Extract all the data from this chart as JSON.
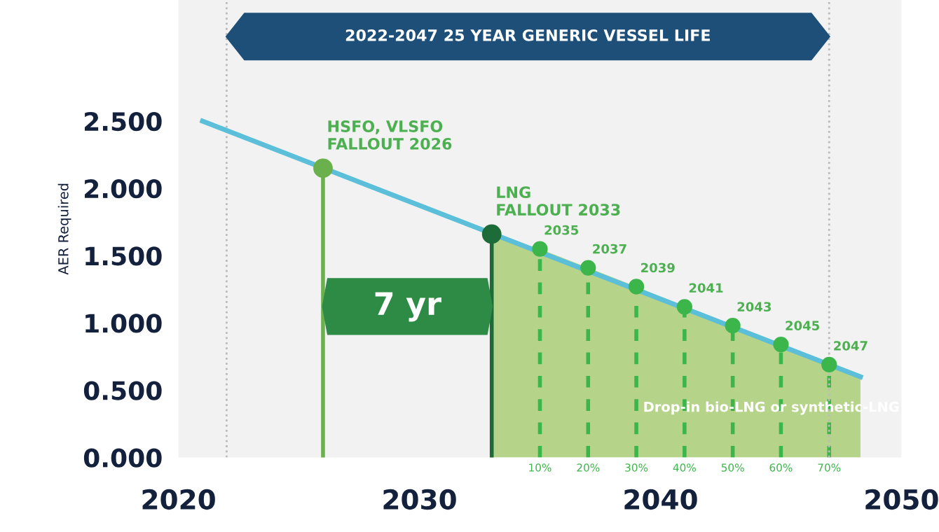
{
  "chart_data": {
    "type": "line",
    "ylabel": "AER Required",
    "xlim": [
      2020,
      2050
    ],
    "xticks": [
      2020,
      2030,
      2040,
      2050
    ],
    "ylim": [
      0,
      3.4
    ],
    "yticks": [
      {
        "value": 0,
        "label": "0.000"
      },
      {
        "value": 0.5,
        "label": "0.500"
      },
      {
        "value": 1.0,
        "label": "1.000"
      },
      {
        "value": 1.5,
        "label": "1.500"
      },
      {
        "value": 2.0,
        "label": "2.000"
      },
      {
        "value": 2.5,
        "label": "2.500"
      }
    ],
    "grid": false,
    "ref_lines": [
      {
        "axis": "x",
        "value": 2022,
        "color": "#bbbbbb",
        "line_style": "dotted"
      },
      {
        "axis": "x",
        "value": 2047,
        "color": "#bbbbbb",
        "line_style": "dotted"
      }
    ],
    "series": [
      {
        "type": "area",
        "color": "#b6d38a",
        "x": [
          2033,
          2035,
          2037,
          2039,
          2041,
          2043,
          2045,
          2047,
          2048.3
        ],
        "values": [
          1.66,
          1.55,
          1.41,
          1.27,
          1.12,
          0.98,
          0.84,
          0.69,
          0.6
        ]
      },
      {
        "color": "#5bbfd9",
        "x": [
          2021,
          2048.3
        ],
        "values": [
          2.5,
          0.6
        ],
        "marker": "none",
        "line_style": "solid"
      },
      {
        "type": "lollipop",
        "colors": [
          "#6ab04c",
          "#1d6b38"
        ],
        "x": [
          2026,
          2033
        ],
        "values": [
          2.15,
          1.66
        ],
        "marker": "circle",
        "line_style": "solid"
      },
      {
        "type": "lollipop",
        "color": "#3cb54a",
        "x": [
          2035,
          2037,
          2039,
          2041,
          2043,
          2045,
          2047
        ],
        "values": [
          1.55,
          1.41,
          1.27,
          1.12,
          0.98,
          0.84,
          0.69
        ],
        "marker": "circle",
        "line_style": "dashed"
      }
    ],
    "bands": [
      {
        "axis": "x",
        "from": 2022,
        "to": 2047,
        "label": "2022-2047 25 YEAR GENERIC VESSEL LIFE",
        "color": "#1d4f78"
      },
      {
        "axis": "x",
        "from": 2026,
        "to": 2033,
        "label": "7 yr",
        "color": "#2e8b45"
      }
    ],
    "annotations": [
      {
        "text": "HSFO, VLSFO\nFALLOUT 2026",
        "x": 2026,
        "y": 2.15
      },
      {
        "text": "LNG\nFALLOUT 2033",
        "x": 2033,
        "y": 1.66
      },
      {
        "text": "2035",
        "x": 2035,
        "y": 1.55
      },
      {
        "text": "2037",
        "x": 2037,
        "y": 1.41
      },
      {
        "text": "2039",
        "x": 2039,
        "y": 1.27
      },
      {
        "text": "2041",
        "x": 2041,
        "y": 1.12
      },
      {
        "text": "2043",
        "x": 2043,
        "y": 0.98
      },
      {
        "text": "2045",
        "x": 2045,
        "y": 0.84
      },
      {
        "text": "2047",
        "x": 2047,
        "y": 0.69
      },
      "Drop-in bio-LNG or synthetic-LNG",
      {
        "text": "10%",
        "x": 2035,
        "y": 0
      },
      {
        "text": "20%",
        "x": 2037,
        "y": 0
      },
      {
        "text": "30%",
        "x": 2039,
        "y": 0
      },
      {
        "text": "40%",
        "x": 2041,
        "y": 0
      },
      {
        "text": "50%",
        "x": 2043,
        "y": 0
      },
      {
        "text": "60%",
        "x": 2045,
        "y": 0
      },
      {
        "text": "70%",
        "x": 2047,
        "y": 0
      }
    ]
  }
}
